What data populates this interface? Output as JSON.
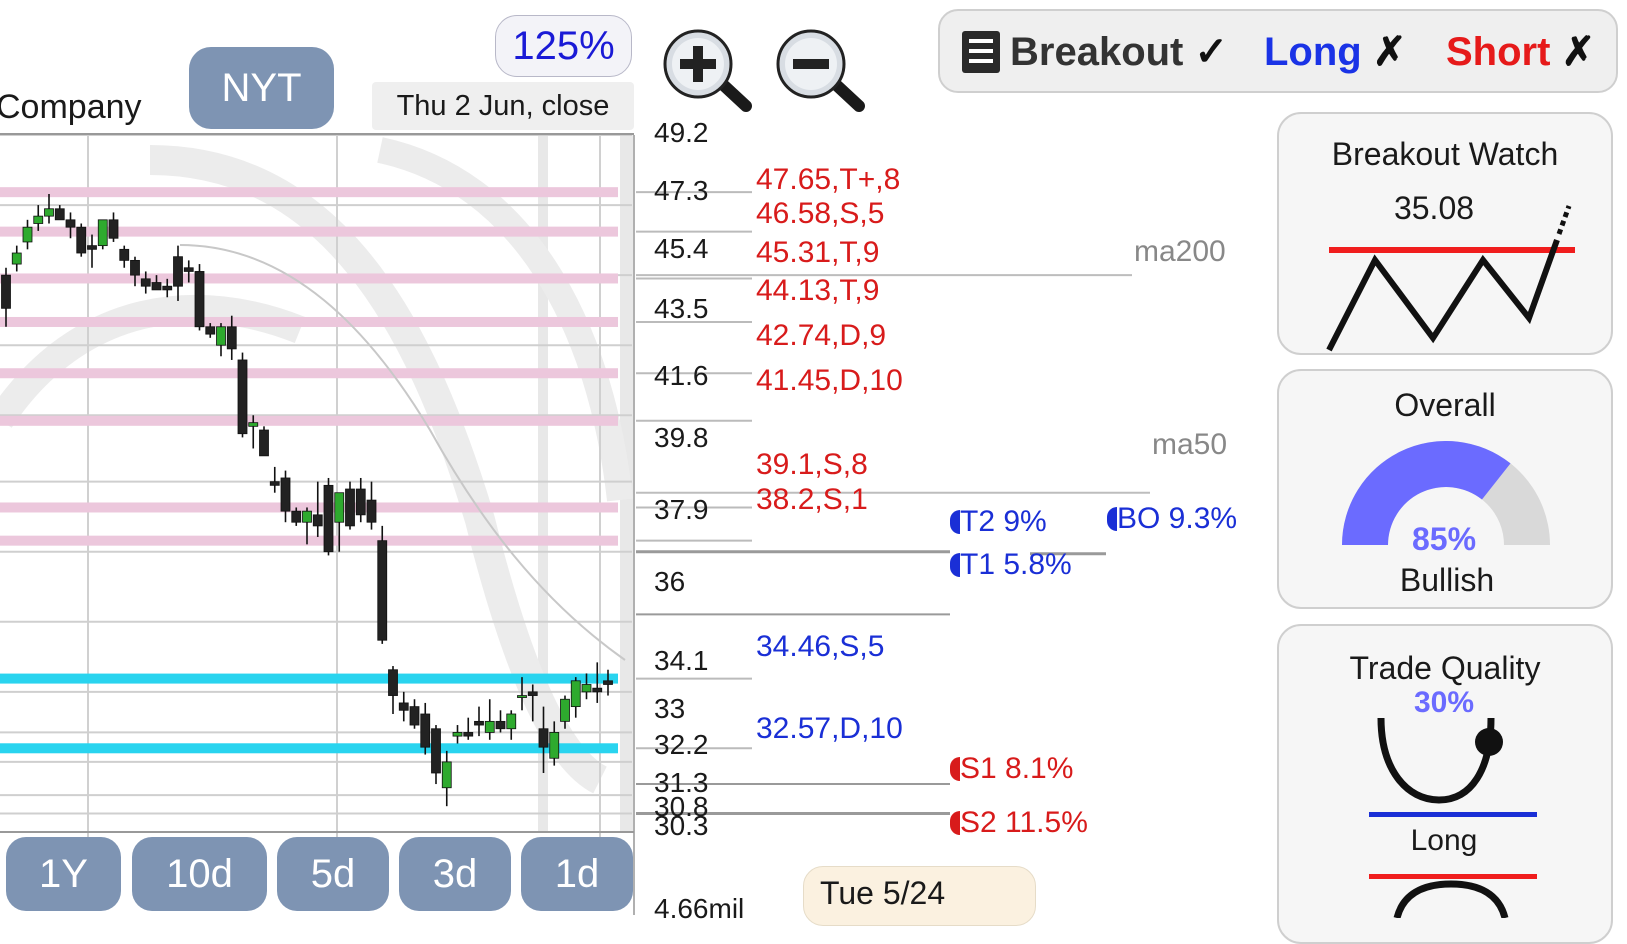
{
  "header": {
    "company_fragment": "Company",
    "symbol_button": "NYT",
    "zoom_level": "125%",
    "date_label": "Thu 2 Jun, close"
  },
  "zoom_controls": {
    "zoom_in_icon": "zoom-in-icon",
    "zoom_out_icon": "zoom-out-icon"
  },
  "signal_bar": {
    "menu_icon": "list-icon",
    "items": [
      {
        "label": "Breakout",
        "mark": "✓",
        "color": "#333333"
      },
      {
        "label": "Long",
        "mark": "✗",
        "color": "#1a33e6"
      },
      {
        "label": "Short",
        "mark": "✗",
        "color": "#e61a1a"
      }
    ]
  },
  "price_axis": {
    "ticks": [
      "49.2",
      "47.3",
      "45.4",
      "43.5",
      "41.6",
      "39.8",
      "37.9",
      "36",
      "34.1",
      "33",
      "32.2",
      "31.3",
      "30.8",
      "30.3"
    ],
    "volume_label": "4.66mil"
  },
  "levels": {
    "resistance": [
      "47.65,T+,8",
      "46.58,S,5",
      "45.31,T,9",
      "44.13,T,9",
      "42.74,D,9",
      "41.45,D,10",
      "39.1,S,8",
      "38.2,S,1"
    ],
    "support": [
      "34.46,S,5",
      "32.57,D,10"
    ]
  },
  "moving_averages": {
    "ma200": "ma200",
    "ma50": "ma50"
  },
  "targets": {
    "t2": "T2 9%",
    "bo": "BO 9.3%",
    "t1": "T1 5.8%",
    "s1": "S1 8.1%",
    "s2": "S2 11.5%"
  },
  "timeframes": [
    "1Y",
    "10d",
    "5d",
    "3d",
    "1d"
  ],
  "hover_date": "Tue 5/24",
  "panels": {
    "breakout_watch": {
      "title": "Breakout Watch",
      "value": "35.08"
    },
    "overall": {
      "title": "Overall",
      "percent": "85%",
      "label": "Bullish",
      "gauge_fraction": 0.85
    },
    "trade_quality": {
      "title": "Trade Quality",
      "percent": "30%",
      "label": "Long"
    }
  },
  "colors": {
    "resistance_text": "#d81b1b",
    "support_text": "#1a2fd6",
    "resistance_band": "#ecc7dc",
    "support_band": "#29d4ef",
    "button_bg": "#7e94b3",
    "gauge_fill": "#6b6bff"
  },
  "chart_data": {
    "type": "candlestick",
    "candles_ohlc": [
      [
        45.4,
        45.6,
        44.0,
        44.5
      ],
      [
        45.7,
        46.2,
        45.5,
        46.0
      ],
      [
        46.3,
        46.9,
        46.1,
        46.7
      ],
      [
        46.8,
        47.3,
        46.6,
        47.0
      ],
      [
        47.0,
        47.6,
        46.8,
        47.2
      ],
      [
        47.2,
        47.3,
        46.9,
        46.9
      ],
      [
        46.9,
        47.1,
        46.4,
        46.7
      ],
      [
        46.7,
        46.8,
        45.9,
        46.0
      ],
      [
        46.2,
        46.5,
        45.6,
        46.1
      ],
      [
        46.2,
        46.9,
        46.1,
        46.9
      ],
      [
        46.9,
        47.1,
        46.3,
        46.4
      ],
      [
        46.1,
        46.2,
        45.6,
        45.8
      ],
      [
        45.8,
        45.9,
        45.1,
        45.4
      ],
      [
        45.3,
        45.5,
        44.9,
        45.1
      ],
      [
        45.2,
        45.4,
        45.0,
        45.0
      ],
      [
        45.1,
        45.3,
        44.8,
        45.0
      ],
      [
        45.9,
        46.2,
        44.7,
        45.1
      ],
      [
        45.6,
        45.8,
        45.2,
        45.5
      ],
      [
        45.5,
        45.7,
        43.9,
        44.0
      ],
      [
        44.0,
        44.1,
        43.7,
        43.8
      ],
      [
        43.5,
        44.1,
        43.2,
        44.0
      ],
      [
        44.0,
        44.3,
        43.1,
        43.4
      ],
      [
        43.1,
        43.3,
        41.0,
        41.1
      ],
      [
        41.3,
        41.6,
        40.7,
        41.4
      ],
      [
        41.2,
        41.3,
        40.5,
        40.5
      ],
      [
        39.8,
        40.2,
        39.5,
        39.7
      ],
      [
        39.9,
        40.1,
        38.7,
        39.0
      ],
      [
        39.0,
        39.1,
        38.6,
        38.7
      ],
      [
        38.7,
        39.1,
        38.1,
        39.0
      ],
      [
        38.9,
        39.8,
        38.3,
        38.6
      ],
      [
        39.7,
        39.9,
        37.8,
        37.9
      ],
      [
        38.7,
        39.5,
        37.9,
        39.5
      ],
      [
        39.6,
        39.8,
        38.5,
        38.6
      ],
      [
        39.6,
        39.9,
        38.7,
        38.9
      ],
      [
        39.3,
        39.8,
        38.5,
        38.7
      ],
      [
        38.2,
        38.6,
        35.4,
        35.5
      ],
      [
        34.7,
        34.8,
        33.5,
        34.0
      ],
      [
        33.8,
        34.1,
        33.3,
        33.6
      ],
      [
        33.7,
        33.9,
        33.1,
        33.2
      ],
      [
        33.5,
        33.8,
        32.4,
        32.6
      ],
      [
        33.1,
        33.2,
        31.6,
        31.9
      ],
      [
        31.5,
        32.5,
        31.0,
        32.2
      ],
      [
        32.9,
        33.2,
        32.7,
        33.0
      ],
      [
        33.0,
        33.4,
        32.8,
        32.9
      ],
      [
        33.3,
        33.7,
        32.9,
        33.2
      ],
      [
        33.0,
        33.9,
        32.8,
        33.3
      ],
      [
        33.3,
        33.6,
        33.0,
        33.1
      ],
      [
        33.1,
        33.6,
        32.8,
        33.5
      ],
      [
        34.0,
        34.5,
        33.6,
        34.0
      ],
      [
        34.1,
        34.3,
        33.3,
        34.0
      ],
      [
        33.1,
        33.7,
        31.9,
        32.6
      ],
      [
        32.3,
        33.3,
        32.1,
        33.0
      ],
      [
        33.3,
        34.0,
        33.1,
        33.9
      ],
      [
        33.7,
        34.5,
        33.4,
        34.4
      ],
      [
        34.1,
        34.6,
        33.9,
        34.3
      ],
      [
        34.2,
        34.9,
        33.8,
        34.1
      ],
      [
        34.4,
        34.7,
        34.0,
        34.3
      ]
    ],
    "ylim": [
      30.3,
      49.2
    ],
    "resistance_levels": [
      47.65,
      46.58,
      45.31,
      44.13,
      42.74,
      41.45,
      39.1,
      38.2
    ],
    "support_levels": [
      34.46,
      32.57
    ],
    "ma200": 45.4,
    "ma50": 39.5,
    "targets": {
      "T2": 37.9,
      "T1": 36.2,
      "BO": 37.9,
      "S1": 31.6,
      "S2": 30.8
    }
  }
}
